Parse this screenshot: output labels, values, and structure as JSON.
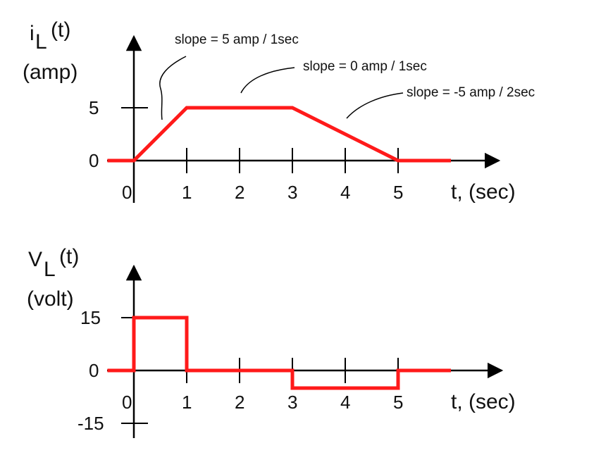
{
  "colors": {
    "series": "#ff1a1a",
    "axis": "#000000",
    "text": "#111111"
  },
  "chart_data": [
    {
      "type": "line",
      "title": "",
      "ylabel": {
        "main": "i",
        "subscript": "L",
        "suffix": "(t)",
        "unit": "(amp)"
      },
      "xlabel": "t, (sec)",
      "x_ticks": [
        0,
        1,
        2,
        3,
        4,
        5
      ],
      "y_ticks": [
        0,
        5
      ],
      "xlim": [
        -0.5,
        7
      ],
      "ylim": [
        0,
        7
      ],
      "series": [
        {
          "name": "iL",
          "x": [
            -0.5,
            0,
            1,
            3,
            5,
            6
          ],
          "y": [
            0,
            0,
            5,
            5,
            0,
            0
          ]
        }
      ],
      "annotations": [
        {
          "text": "slope = 5 amp / 1sec"
        },
        {
          "text": "slope = 0 amp / 1sec"
        },
        {
          "text": "slope = -5 amp / 2sec"
        }
      ]
    },
    {
      "type": "line",
      "title": "",
      "ylabel": {
        "main": "V",
        "subscript": "L",
        "suffix": "(t)",
        "unit": "(volt)"
      },
      "xlabel": "t, (sec)",
      "x_ticks": [
        0,
        1,
        2,
        3,
        4,
        5
      ],
      "y_ticks": [
        15,
        0,
        -15
      ],
      "xlim": [
        -0.5,
        7
      ],
      "series": [
        {
          "name": "VL",
          "x": [
            -0.5,
            0,
            0,
            1,
            1,
            3,
            3,
            5,
            5,
            6
          ],
          "y": [
            0,
            0,
            15,
            15,
            0,
            0,
            -5,
            -5,
            0,
            0
          ]
        }
      ]
    }
  ]
}
